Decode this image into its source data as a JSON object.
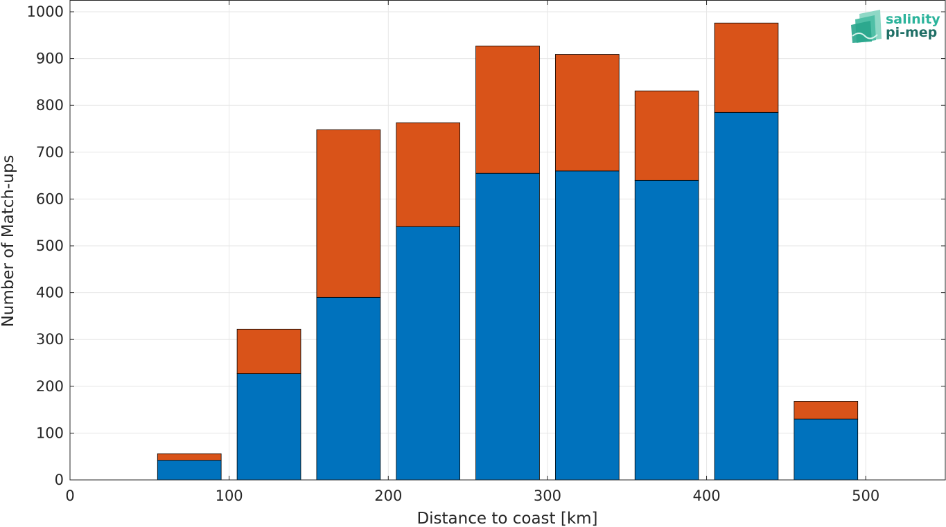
{
  "chart_data": {
    "type": "bar",
    "stacked": true,
    "title": "",
    "xlabel": "Distance to coast [km]",
    "ylabel": "Number of Match-ups",
    "xlim": [
      0,
      550
    ],
    "ylim": [
      0,
      1000
    ],
    "x_ticks": [
      0,
      100,
      200,
      300,
      400,
      500
    ],
    "y_ticks": [
      0,
      100,
      200,
      300,
      400,
      500,
      600,
      700,
      800,
      900,
      1000
    ],
    "grid": true,
    "bar_width": 40,
    "x": [
      25,
      75,
      125,
      175,
      225,
      275,
      325,
      375,
      425,
      475,
      525
    ],
    "series": [
      {
        "color": "#0072BD",
        "values": [
          0,
          42,
          227,
          390,
          541,
          655,
          660,
          640,
          785,
          130,
          0
        ]
      },
      {
        "color": "#D95319",
        "values": [
          0,
          14,
          95,
          358,
          222,
          272,
          249,
          191,
          191,
          38,
          0
        ]
      }
    ]
  },
  "logo": {
    "line1": "salinity",
    "line2": "pi-mep",
    "color1": "#2bb39b",
    "color2": "#1f6f66"
  }
}
